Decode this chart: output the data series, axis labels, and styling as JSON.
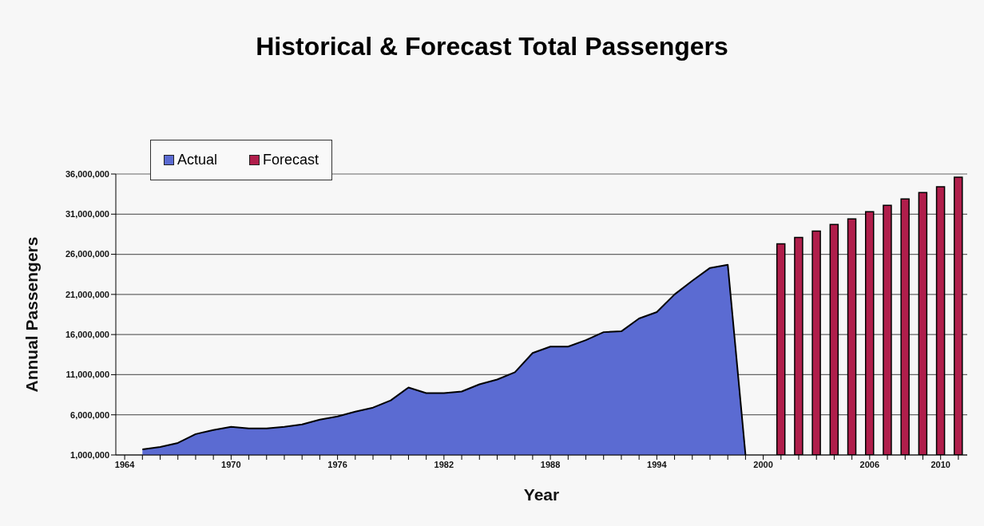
{
  "chart_data": {
    "type": "area",
    "title": "Historical & Forecast Total Passengers",
    "xlabel": "Year",
    "ylabel": "Annual Passengers",
    "categories": [
      "1964",
      null,
      null,
      null,
      null,
      null,
      "1970",
      null,
      null,
      null,
      null,
      null,
      "1976",
      null,
      null,
      null,
      null,
      null,
      "1982",
      null,
      null,
      null,
      null,
      null,
      "1988",
      null,
      null,
      null,
      null,
      null,
      "1994",
      null,
      null,
      null,
      null,
      null,
      "2000",
      null,
      null,
      null,
      null,
      null,
      "2006",
      null,
      null,
      null,
      "2010",
      null
    ],
    "series": [
      {
        "name": "Actual",
        "color": "#5b6bd2",
        "values": [
          null,
          1700000,
          2000000,
          2500000,
          3600000,
          4100000,
          4500000,
          4300000,
          4300000,
          4500000,
          4800000,
          5400000,
          5800000,
          6400000,
          6900000,
          7800000,
          9400000,
          8700000,
          8700000,
          8900000,
          9800000,
          10400000,
          11300000,
          13700000,
          14500000,
          14500000,
          15300000,
          16300000,
          16400000,
          18000000,
          18800000,
          21000000,
          22700000,
          24300000,
          24700000,
          1000000,
          null,
          null,
          null,
          null,
          null,
          null,
          null,
          null,
          null,
          null,
          null,
          null
        ]
      },
      {
        "name": "Forecast",
        "type": "bar",
        "color": "#b01e4b",
        "values": [
          null,
          null,
          null,
          null,
          null,
          null,
          null,
          null,
          null,
          null,
          null,
          null,
          null,
          null,
          null,
          null,
          null,
          null,
          null,
          null,
          null,
          null,
          null,
          null,
          null,
          null,
          null,
          null,
          null,
          null,
          null,
          null,
          null,
          null,
          null,
          null,
          null,
          27300000,
          28100000,
          28900000,
          29700000,
          30400000,
          31300000,
          32100000,
          32900000,
          33700000,
          34400000,
          35600000
        ]
      }
    ],
    "ylim": [
      1000000,
      36000000
    ],
    "yticks": [
      {
        "value": 1000000,
        "label": "1,000,000"
      },
      {
        "value": 6000000,
        "label": "6,000,000"
      },
      {
        "value": 11000000,
        "label": "11,000,000"
      },
      {
        "value": 16000000,
        "label": "16,000,000"
      },
      {
        "value": 21000000,
        "label": "21,000,000"
      },
      {
        "value": 26000000,
        "label": "26,000,000"
      },
      {
        "value": 31000000,
        "label": "31,000,000"
      },
      {
        "value": 36000000,
        "label": "36,000,000"
      }
    ],
    "grid": "y",
    "legend": "top left"
  }
}
